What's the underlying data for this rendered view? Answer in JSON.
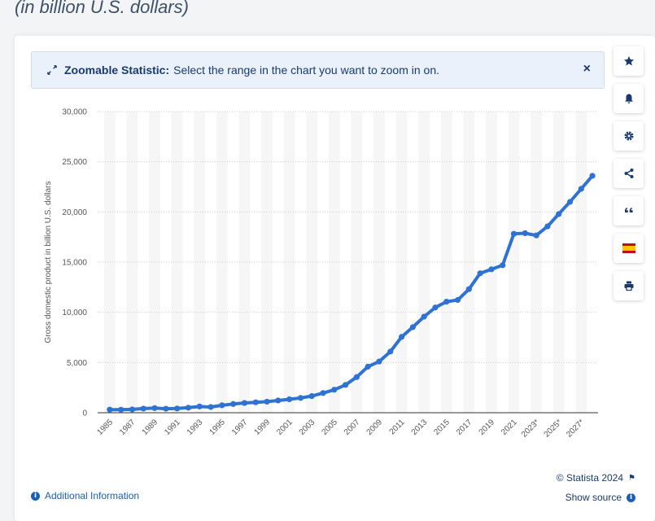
{
  "header": {
    "subtitle": "(in billion U.S. dollars)"
  },
  "banner": {
    "title": "Zoomable Statistic:",
    "text": "Select the range in the chart you want to zoom in on.",
    "close": "×"
  },
  "sidebar": {
    "icons": [
      "star-icon",
      "bell-icon",
      "gear-icon",
      "share-icon",
      "quote-icon",
      "spain-flag-icon",
      "print-icon"
    ]
  },
  "footer": {
    "additional_info": "Additional Information",
    "copyright": "© Statista 2024",
    "show_source": "Show source"
  },
  "colors": {
    "line": "#2e72d2",
    "accent": "#1a3a6e",
    "grid": "#cccccc",
    "band": "#f6f6f6"
  },
  "chart_data": {
    "type": "line",
    "ylabel": "Gross domestic product in billion U.S. dollars",
    "xlabel": "",
    "ylim": [
      0,
      30000
    ],
    "yticks": [
      0,
      5000,
      10000,
      15000,
      20000,
      25000,
      30000
    ],
    "ytick_labels": [
      "0",
      "5,000",
      "10,000",
      "15,000",
      "20,000",
      "25,000",
      "30,000"
    ],
    "x": [
      1985,
      1986,
      1987,
      1988,
      1989,
      1990,
      1991,
      1992,
      1993,
      1994,
      1995,
      1996,
      1997,
      1998,
      1999,
      2000,
      2001,
      2002,
      2003,
      2004,
      2005,
      2006,
      2007,
      2008,
      2009,
      2010,
      2011,
      2012,
      2013,
      2014,
      2015,
      2016,
      2017,
      2018,
      2019,
      2020,
      2021,
      2022,
      2023,
      2024,
      2025,
      2026,
      2027,
      2028
    ],
    "xtick_labels": [
      "1985",
      "1987",
      "1989",
      "1991",
      "1993",
      "1995",
      "1997",
      "1999",
      "2001",
      "2003",
      "2005",
      "2007",
      "2009",
      "2011",
      "2013",
      "2015",
      "2017",
      "2019",
      "2021",
      "2023*",
      "2025*",
      "2027*"
    ],
    "xtick_years": [
      1985,
      1987,
      1989,
      1991,
      1993,
      1995,
      1997,
      1999,
      2001,
      2003,
      2005,
      2007,
      2009,
      2011,
      2013,
      2015,
      2017,
      2019,
      2021,
      2023,
      2025,
      2027
    ],
    "series": [
      {
        "values": [
          310,
          300,
          330,
          410,
          460,
          400,
          420,
          500,
          620,
          570,
          740,
          870,
          970,
          1040,
          1100,
          1220,
          1340,
          1470,
          1660,
          1960,
          2290,
          2770,
          3550,
          4590,
          5100,
          6090,
          7550,
          8530,
          9570,
          10480,
          11060,
          11230,
          12310,
          13890,
          14280,
          14690,
          17820,
          17880,
          17660,
          18560,
          19790,
          21000,
          22300,
          23600
        ]
      }
    ]
  }
}
